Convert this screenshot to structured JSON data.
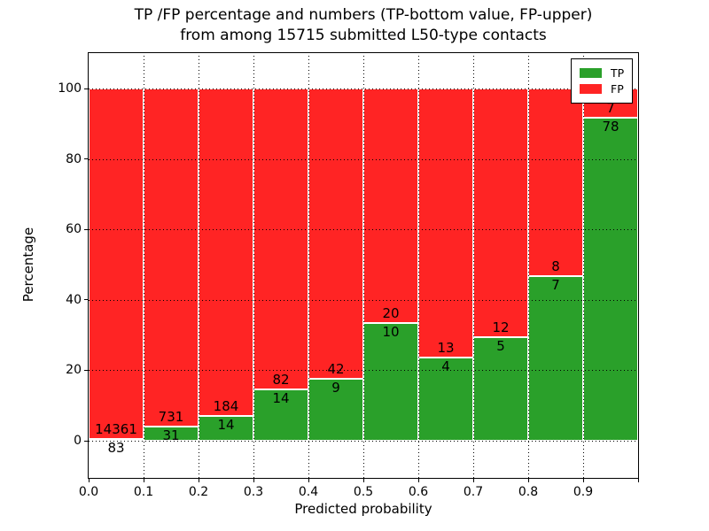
{
  "figure": {
    "title_line1": "TP /FP percentage and numbers (TP-bottom value, FP-upper)",
    "title_line2": "from among 15715 submitted L50-type contacts"
  },
  "chart_data": {
    "type": "bar",
    "stacked": true,
    "normalized_to_percent": true,
    "title": "TP /FP percentage and numbers (TP-bottom value, FP-upper) from among 15715 submitted L50-type contacts",
    "xlabel": "Predicted probability",
    "ylabel": "Percentage",
    "total_contacts": 15715,
    "bin_edges": [
      0.0,
      0.1,
      0.2,
      0.3,
      0.4,
      0.5,
      0.6,
      0.7,
      0.8,
      0.9,
      1.0
    ],
    "categories": [
      "0.0-0.1",
      "0.1-0.2",
      "0.2-0.3",
      "0.3-0.4",
      "0.4-0.5",
      "0.5-0.6",
      "0.6-0.7",
      "0.7-0.8",
      "0.8-0.9",
      "0.9-1.0"
    ],
    "series": [
      {
        "name": "TP",
        "color": "#2aa02a",
        "counts": [
          83,
          31,
          14,
          14,
          9,
          10,
          4,
          5,
          7,
          78
        ]
      },
      {
        "name": "FP",
        "color": "#ff2424",
        "counts": [
          14361,
          731,
          184,
          82,
          42,
          20,
          13,
          12,
          8,
          7
        ]
      }
    ],
    "tp_percent_of_bin": [
      0.57,
      4.07,
      7.07,
      14.58,
      17.65,
      33.33,
      23.53,
      29.41,
      46.67,
      91.76
    ],
    "xticks": [
      "0.0",
      "0.1",
      "0.2",
      "0.3",
      "0.4",
      "0.5",
      "0.6",
      "0.7",
      "0.8",
      "0.9"
    ],
    "yticks": [
      0,
      20,
      40,
      60,
      80,
      100
    ],
    "xlim": [
      0.0,
      1.0
    ],
    "ylim": [
      -10.5,
      110.1
    ],
    "grid": "dotted",
    "legend": {
      "position": "upper right",
      "entries": [
        "TP",
        "FP"
      ]
    }
  }
}
